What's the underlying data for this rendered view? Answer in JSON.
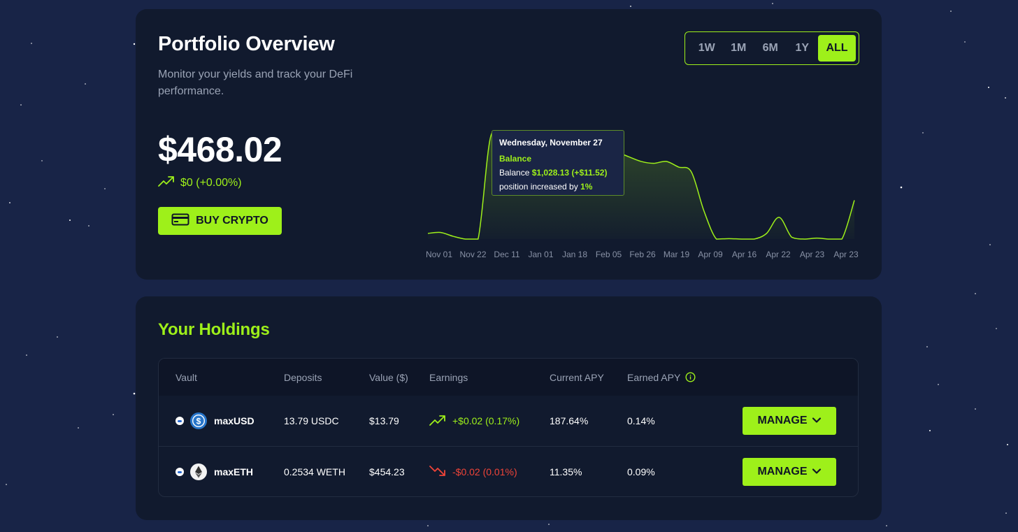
{
  "colors": {
    "accent": "#9ef01a",
    "background": "#182447",
    "panel": "#111a2e",
    "negative": "#f04438"
  },
  "overview": {
    "title": "Portfolio Overview",
    "subtitle": "Monitor your yields and track your DeFi performance.",
    "balance": "$468.02",
    "change": "$0 (+0.00%)",
    "change_icon": "trend-up-icon",
    "buy_button": {
      "label": "BUY CRYPTO",
      "icon": "credit-card-icon"
    },
    "ranges": [
      {
        "label": "1W",
        "active": false
      },
      {
        "label": "1M",
        "active": false
      },
      {
        "label": "6M",
        "active": false
      },
      {
        "label": "1Y",
        "active": false
      },
      {
        "label": "ALL",
        "active": true
      }
    ]
  },
  "chart_data": {
    "type": "area",
    "title": "",
    "xlabel": "",
    "ylabel": "",
    "grid": false,
    "legend": "none",
    "x_ticks": [
      "Nov 01",
      "Nov 22",
      "Dec 11",
      "Jan 01",
      "Jan 18",
      "Feb 05",
      "Feb 26",
      "Mar 19",
      "Apr 09",
      "Apr 16",
      "Apr 22",
      "Apr 23",
      "Apr 23"
    ],
    "series": [
      {
        "name": "Balance",
        "color": "#9ef01a",
        "values": [
          60,
          70,
          30,
          0,
          0,
          1080,
          1000,
          1030,
          985,
          1020,
          1028,
          1015,
          1000,
          960,
          940,
          920,
          870,
          820,
          800,
          820,
          760,
          710,
          300,
          0,
          5,
          0,
          0,
          60,
          230,
          20,
          0,
          10,
          0,
          0,
          410
        ]
      }
    ],
    "tooltip": {
      "date": "Wednesday, November 27",
      "series": "Balance",
      "balance_label": "Balance",
      "balance_value": "$1,028.13 (+$11.52)",
      "position_text": "position increased by",
      "position_value": "1%"
    }
  },
  "holdings": {
    "title": "Your Holdings",
    "columns": [
      "Vault",
      "Deposits",
      "Value ($)",
      "Earnings",
      "Current APY",
      "Earned APY"
    ],
    "earned_apy_icon": "info-icon",
    "rows": [
      {
        "vault": "maxUSD",
        "token_icon": "usdc-icon",
        "deposits": "13.79 USDC",
        "value": "$13.79",
        "earnings": "+$0.02 (0.17%)",
        "earnings_trend": "up",
        "current_apy": "187.64%",
        "earned_apy": "0.14%",
        "action": "MANAGE"
      },
      {
        "vault": "maxETH",
        "token_icon": "ethereum-icon",
        "deposits": "0.2534 WETH",
        "value": "$454.23",
        "earnings": "-$0.02 (0.01%)",
        "earnings_trend": "down",
        "current_apy": "11.35%",
        "earned_apy": "0.09%",
        "action": "MANAGE"
      }
    ]
  }
}
